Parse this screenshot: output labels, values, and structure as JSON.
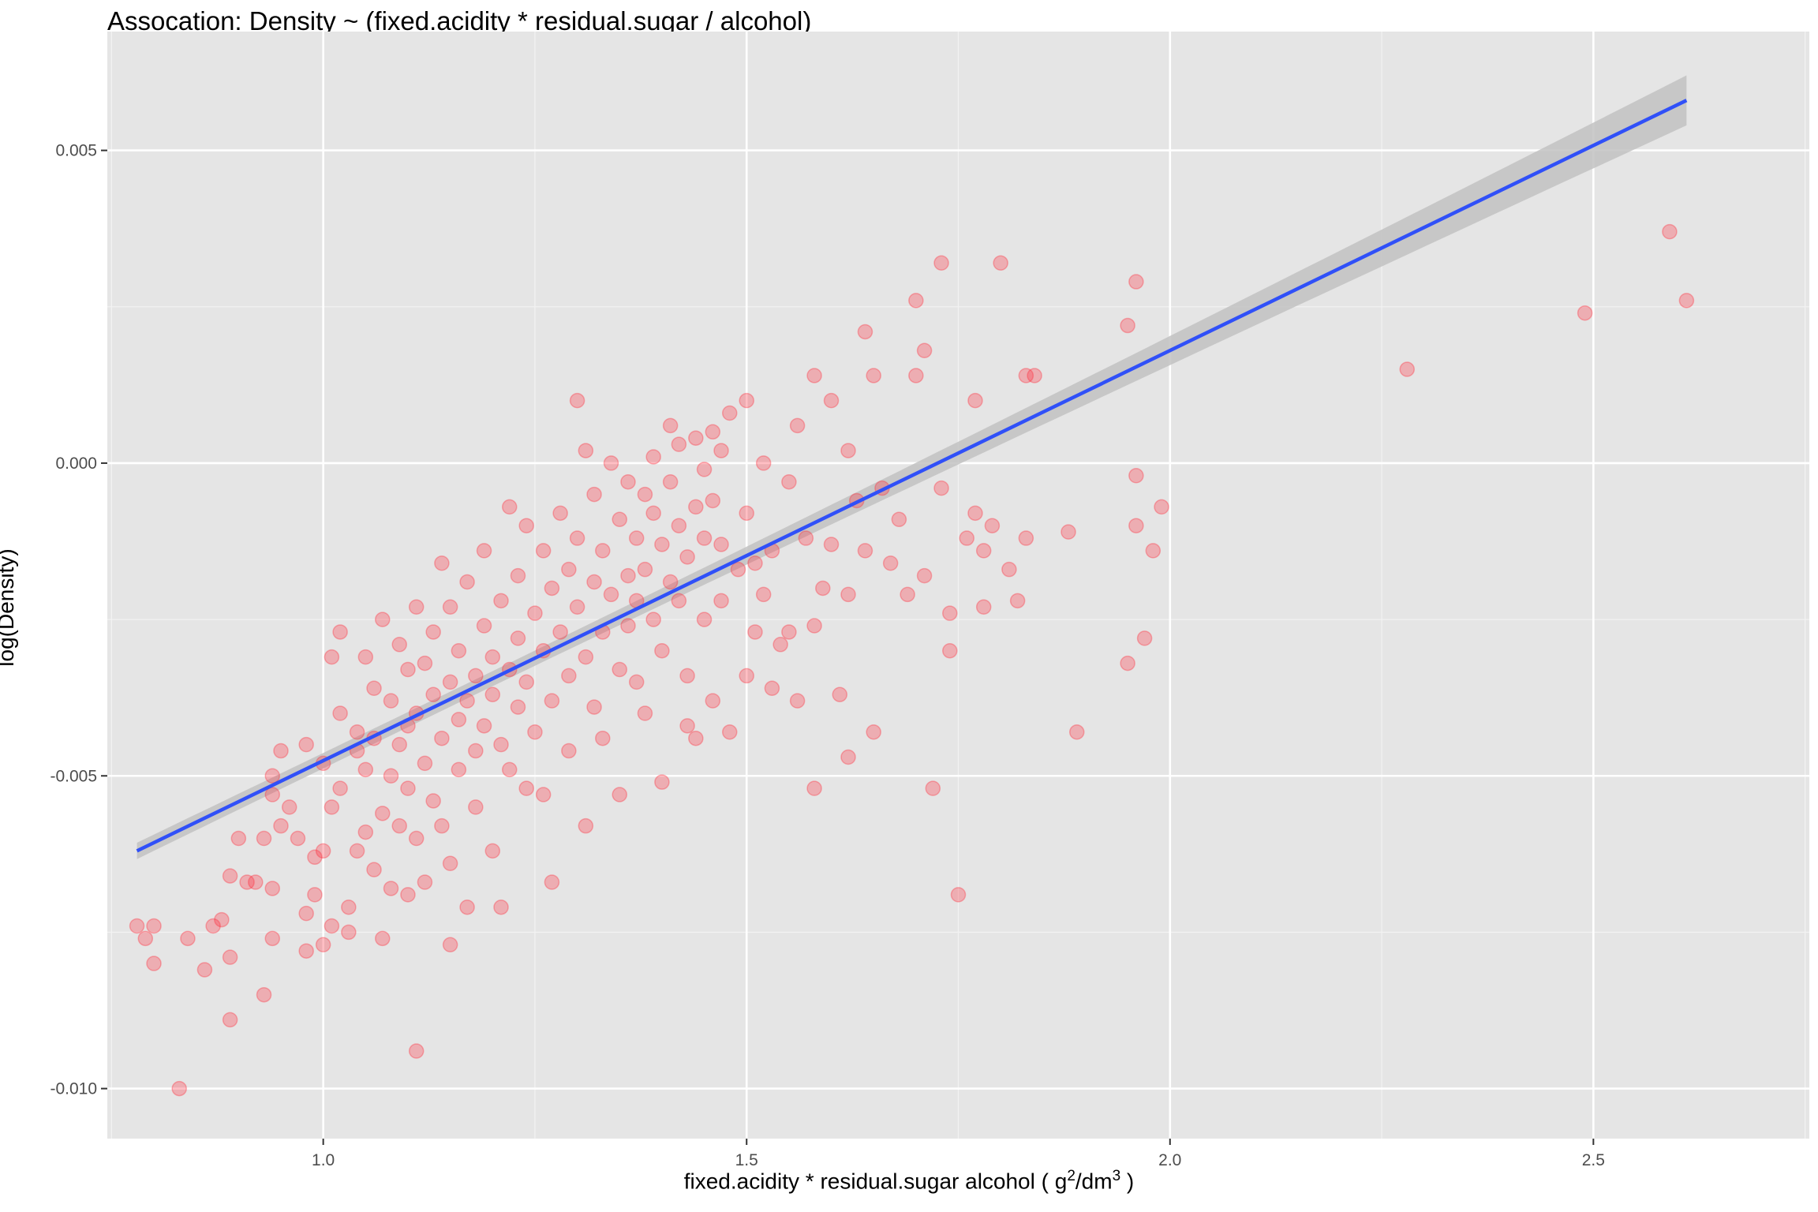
{
  "chart_data": {
    "type": "scatter",
    "title": "Assocation: Density ~ (fixed.acidity * residual.sugar / alcohol)",
    "xlabel": {
      "main": "fixed.acidity * residual.sugar alcohol ( g",
      "sup1": "2",
      "mid": "/dm",
      "sup2": "3",
      "end": " )"
    },
    "ylabel": "log(Density)",
    "xlim": [
      0.745,
      2.755
    ],
    "ylim": [
      -0.0108,
      0.0069
    ],
    "x_ticks": [
      1.0,
      1.5,
      2.0,
      2.5
    ],
    "x_tick_labels": [
      "1.0",
      "1.5",
      "2.0",
      "2.5"
    ],
    "y_ticks": [
      -0.01,
      -0.005,
      0.0,
      0.005
    ],
    "y_tick_labels": [
      "-0.010",
      "-0.005",
      "0.000",
      "0.005"
    ],
    "grid": true,
    "point_color": "#ff2a3a",
    "fit_line_color": "#3050f8",
    "confidence_band_color": "#c2c2c2",
    "panel_background": "#e5e5e5",
    "regression": {
      "x": [
        0.78,
        2.61
      ],
      "y": [
        -0.0062,
        0.0058
      ],
      "ci_low_end": [
        -0.006,
        0.0054
      ],
      "ci_high_end": [
        -0.0064,
        0.0062
      ]
    },
    "points": [
      [
        0.78,
        -0.0074
      ],
      [
        0.79,
        -0.0076
      ],
      [
        0.8,
        -0.0074
      ],
      [
        0.8,
        -0.008
      ],
      [
        0.83,
        -0.01
      ],
      [
        0.84,
        -0.0076
      ],
      [
        0.86,
        -0.0081
      ],
      [
        0.87,
        -0.0074
      ],
      [
        0.88,
        -0.0073
      ],
      [
        0.89,
        -0.0079
      ],
      [
        0.89,
        -0.0089
      ],
      [
        0.89,
        -0.0066
      ],
      [
        0.9,
        -0.006
      ],
      [
        0.91,
        -0.0067
      ],
      [
        0.92,
        -0.0067
      ],
      [
        0.93,
        -0.006
      ],
      [
        0.93,
        -0.0085
      ],
      [
        0.94,
        -0.0076
      ],
      [
        0.94,
        -0.0068
      ],
      [
        0.94,
        -0.0053
      ],
      [
        0.94,
        -0.005
      ],
      [
        0.95,
        -0.0046
      ],
      [
        0.95,
        -0.0058
      ],
      [
        0.96,
        -0.0055
      ],
      [
        0.97,
        -0.006
      ],
      [
        0.98,
        -0.0045
      ],
      [
        0.98,
        -0.0072
      ],
      [
        0.98,
        -0.0078
      ],
      [
        0.99,
        -0.0063
      ],
      [
        0.99,
        -0.0069
      ],
      [
        1.0,
        -0.0048
      ],
      [
        1.0,
        -0.0062
      ],
      [
        1.0,
        -0.0077
      ],
      [
        1.01,
        -0.0074
      ],
      [
        1.01,
        -0.0055
      ],
      [
        1.01,
        -0.0031
      ],
      [
        1.02,
        -0.0052
      ],
      [
        1.02,
        -0.0027
      ],
      [
        1.02,
        -0.004
      ],
      [
        1.03,
        -0.0071
      ],
      [
        1.03,
        -0.0075
      ],
      [
        1.04,
        -0.0046
      ],
      [
        1.04,
        -0.0062
      ],
      [
        1.04,
        -0.0043
      ],
      [
        1.05,
        -0.0059
      ],
      [
        1.05,
        -0.0049
      ],
      [
        1.05,
        -0.0031
      ],
      [
        1.06,
        -0.0065
      ],
      [
        1.06,
        -0.0036
      ],
      [
        1.06,
        -0.0044
      ],
      [
        1.07,
        -0.0076
      ],
      [
        1.07,
        -0.0056
      ],
      [
        1.07,
        -0.0025
      ],
      [
        1.08,
        -0.005
      ],
      [
        1.08,
        -0.0038
      ],
      [
        1.08,
        -0.0068
      ],
      [
        1.09,
        -0.0045
      ],
      [
        1.09,
        -0.0029
      ],
      [
        1.09,
        -0.0058
      ],
      [
        1.1,
        -0.0042
      ],
      [
        1.1,
        -0.0033
      ],
      [
        1.1,
        -0.0069
      ],
      [
        1.1,
        -0.0052
      ],
      [
        1.11,
        -0.0094
      ],
      [
        1.11,
        -0.004
      ],
      [
        1.11,
        -0.0023
      ],
      [
        1.11,
        -0.006
      ],
      [
        1.12,
        -0.0048
      ],
      [
        1.12,
        -0.0032
      ],
      [
        1.12,
        -0.0067
      ],
      [
        1.13,
        -0.0037
      ],
      [
        1.13,
        -0.0054
      ],
      [
        1.13,
        -0.0027
      ],
      [
        1.14,
        -0.0044
      ],
      [
        1.14,
        -0.0016
      ],
      [
        1.14,
        -0.0058
      ],
      [
        1.15,
        -0.0035
      ],
      [
        1.15,
        -0.0077
      ],
      [
        1.15,
        -0.0023
      ],
      [
        1.15,
        -0.0064
      ],
      [
        1.16,
        -0.0041
      ],
      [
        1.16,
        -0.0049
      ],
      [
        1.16,
        -0.003
      ],
      [
        1.17,
        -0.0071
      ],
      [
        1.17,
        -0.0038
      ],
      [
        1.17,
        -0.0019
      ],
      [
        1.18,
        -0.0046
      ],
      [
        1.18,
        -0.0034
      ],
      [
        1.18,
        -0.0055
      ],
      [
        1.19,
        -0.0026
      ],
      [
        1.19,
        -0.0042
      ],
      [
        1.19,
        -0.0014
      ],
      [
        1.2,
        -0.0037
      ],
      [
        1.2,
        -0.0062
      ],
      [
        1.2,
        -0.0031
      ],
      [
        1.21,
        -0.0045
      ],
      [
        1.21,
        -0.0022
      ],
      [
        1.21,
        -0.0071
      ],
      [
        1.22,
        -0.0033
      ],
      [
        1.22,
        -0.0007
      ],
      [
        1.22,
        -0.0049
      ],
      [
        1.23,
        -0.0039
      ],
      [
        1.23,
        -0.0018
      ],
      [
        1.23,
        -0.0028
      ],
      [
        1.24,
        -0.0052
      ],
      [
        1.24,
        -0.0035
      ],
      [
        1.24,
        -0.001
      ],
      [
        1.25,
        -0.0024
      ],
      [
        1.25,
        -0.0043
      ],
      [
        1.26,
        -0.003
      ],
      [
        1.26,
        -0.0014
      ],
      [
        1.26,
        -0.0053
      ],
      [
        1.27,
        -0.002
      ],
      [
        1.27,
        -0.0038
      ],
      [
        1.27,
        -0.0067
      ],
      [
        1.28,
        -0.0027
      ],
      [
        1.28,
        -0.0008
      ],
      [
        1.29,
        -0.0034
      ],
      [
        1.29,
        -0.0017
      ],
      [
        1.29,
        -0.0046
      ],
      [
        1.3,
        -0.0023
      ],
      [
        1.3,
        0.001
      ],
      [
        1.3,
        -0.0012
      ],
      [
        1.31,
        -0.0031
      ],
      [
        1.31,
        -0.0058
      ],
      [
        1.31,
        0.0002
      ],
      [
        1.32,
        -0.0019
      ],
      [
        1.32,
        -0.0039
      ],
      [
        1.32,
        -0.0005
      ],
      [
        1.33,
        -0.0027
      ],
      [
        1.33,
        -0.0014
      ],
      [
        1.33,
        -0.0044
      ],
      [
        1.34,
        -0.0021
      ],
      [
        1.34,
        0.0
      ],
      [
        1.35,
        -0.0033
      ],
      [
        1.35,
        -0.0009
      ],
      [
        1.35,
        -0.0053
      ],
      [
        1.36,
        -0.0018
      ],
      [
        1.36,
        -0.0026
      ],
      [
        1.36,
        -0.0003
      ],
      [
        1.37,
        -0.0012
      ],
      [
        1.37,
        -0.0035
      ],
      [
        1.37,
        -0.0022
      ],
      [
        1.38,
        -0.0005
      ],
      [
        1.38,
        -0.0017
      ],
      [
        1.38,
        -0.004
      ],
      [
        1.39,
        -0.0008
      ],
      [
        1.39,
        -0.0025
      ],
      [
        1.39,
        0.0001
      ],
      [
        1.4,
        -0.0013
      ],
      [
        1.4,
        -0.003
      ],
      [
        1.4,
        -0.0051
      ],
      [
        1.41,
        -0.0003
      ],
      [
        1.41,
        -0.0019
      ],
      [
        1.41,
        0.0006
      ],
      [
        1.42,
        -0.001
      ],
      [
        1.42,
        -0.0022
      ],
      [
        1.42,
        0.0003
      ],
      [
        1.43,
        -0.0015
      ],
      [
        1.43,
        -0.0034
      ],
      [
        1.43,
        -0.0042
      ],
      [
        1.44,
        -0.0007
      ],
      [
        1.44,
        0.0004
      ],
      [
        1.44,
        -0.0044
      ],
      [
        1.45,
        -0.0012
      ],
      [
        1.45,
        -0.0001
      ],
      [
        1.45,
        -0.0025
      ],
      [
        1.46,
        -0.0006
      ],
      [
        1.46,
        0.0005
      ],
      [
        1.46,
        -0.0038
      ],
      [
        1.47,
        -0.0013
      ],
      [
        1.47,
        0.0002
      ],
      [
        1.47,
        -0.0022
      ],
      [
        1.48,
        0.0008
      ],
      [
        1.48,
        -0.0043
      ],
      [
        1.49,
        -0.0017
      ],
      [
        1.5,
        -0.0008
      ],
      [
        1.5,
        -0.0034
      ],
      [
        1.5,
        0.001
      ],
      [
        1.51,
        -0.0016
      ],
      [
        1.51,
        -0.0027
      ],
      [
        1.52,
        -0.0021
      ],
      [
        1.52,
        0.0
      ],
      [
        1.53,
        -0.0036
      ],
      [
        1.53,
        -0.0014
      ],
      [
        1.54,
        -0.0029
      ],
      [
        1.55,
        -0.0003
      ],
      [
        1.55,
        -0.0027
      ],
      [
        1.56,
        -0.0038
      ],
      [
        1.56,
        0.0006
      ],
      [
        1.57,
        -0.0012
      ],
      [
        1.58,
        -0.0026
      ],
      [
        1.58,
        0.0014
      ],
      [
        1.58,
        -0.0052
      ],
      [
        1.59,
        -0.002
      ],
      [
        1.6,
        -0.0013
      ],
      [
        1.6,
        0.001
      ],
      [
        1.61,
        -0.0037
      ],
      [
        1.62,
        -0.0021
      ],
      [
        1.62,
        0.0002
      ],
      [
        1.62,
        -0.0047
      ],
      [
        1.63,
        -0.0006
      ],
      [
        1.64,
        0.0021
      ],
      [
        1.64,
        -0.0014
      ],
      [
        1.65,
        -0.0043
      ],
      [
        1.65,
        0.0014
      ],
      [
        1.66,
        -0.0004
      ],
      [
        1.67,
        -0.0016
      ],
      [
        1.68,
        -0.0009
      ],
      [
        1.69,
        -0.0021
      ],
      [
        1.7,
        0.0014
      ],
      [
        1.7,
        0.0026
      ],
      [
        1.71,
        0.0018
      ],
      [
        1.71,
        -0.0018
      ],
      [
        1.72,
        -0.0052
      ],
      [
        1.73,
        0.0032
      ],
      [
        1.73,
        -0.0004
      ],
      [
        1.74,
        -0.003
      ],
      [
        1.74,
        -0.0024
      ],
      [
        1.75,
        -0.0069
      ],
      [
        1.76,
        -0.0012
      ],
      [
        1.77,
        0.001
      ],
      [
        1.77,
        -0.0008
      ],
      [
        1.78,
        -0.0014
      ],
      [
        1.78,
        -0.0023
      ],
      [
        1.79,
        -0.001
      ],
      [
        1.8,
        0.0032
      ],
      [
        1.81,
        -0.0017
      ],
      [
        1.82,
        -0.0022
      ],
      [
        1.83,
        -0.0012
      ],
      [
        1.83,
        0.0014
      ],
      [
        1.84,
        0.0014
      ],
      [
        1.88,
        -0.0011
      ],
      [
        1.89,
        -0.0043
      ],
      [
        1.95,
        0.0022
      ],
      [
        1.95,
        -0.0032
      ],
      [
        1.96,
        -0.001
      ],
      [
        1.96,
        -0.0002
      ],
      [
        1.96,
        0.0029
      ],
      [
        1.97,
        -0.0028
      ],
      [
        1.98,
        -0.0014
      ],
      [
        1.99,
        -0.0007
      ],
      [
        2.28,
        0.0015
      ],
      [
        2.49,
        0.0024
      ],
      [
        2.59,
        0.0037
      ],
      [
        2.61,
        0.0026
      ]
    ]
  }
}
